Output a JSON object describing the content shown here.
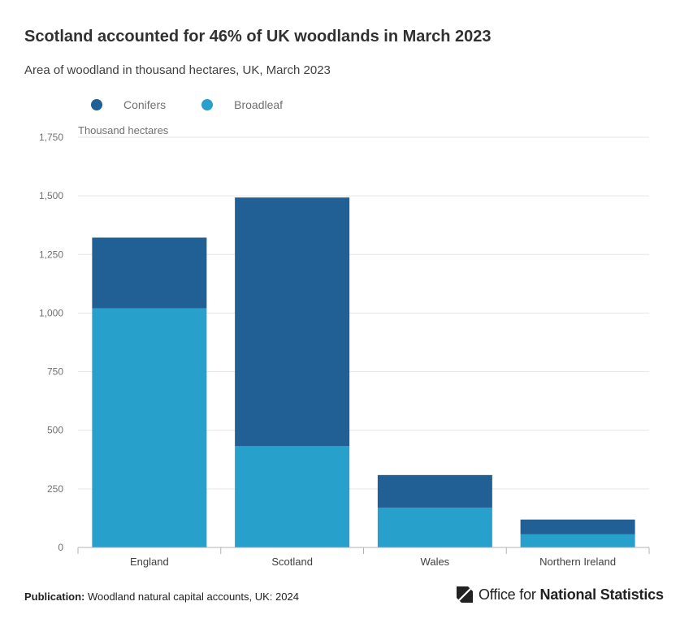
{
  "title": "Scotland accounted for 46% of UK woodlands in March 2023",
  "subtitle": "Area of woodland in thousand hectares, UK, March 2023",
  "unit_label": "Thousand hectares",
  "publication": {
    "label": "Publication:",
    "text": "Woodland natural capital accounts, UK: 2024"
  },
  "logo": {
    "icon": "ons-logo-icon",
    "text_light": "Office for",
    "text_bold": "National Statistics"
  },
  "chart_data": {
    "type": "bar",
    "stacked": true,
    "categories": [
      "England",
      "Scotland",
      "Wales",
      "Northern Ireland"
    ],
    "series": [
      {
        "name": "Broadleaf",
        "color": "#27a0cc",
        "values": [
          1020,
          432,
          170,
          56
        ]
      },
      {
        "name": "Conifers",
        "color": "#206095",
        "values": [
          302,
          1061,
          139,
          63
        ]
      }
    ],
    "legend_order": [
      "Conifers",
      "Broadleaf"
    ],
    "ylim": [
      0,
      1750
    ],
    "yticks": [
      "0",
      "250",
      "500",
      "750",
      "1,000",
      "1,250",
      "1,500",
      "1,750"
    ],
    "ytick_values": [
      0,
      250,
      500,
      750,
      1000,
      1250,
      1500,
      1750
    ],
    "grid": true,
    "legend_position": "top-left"
  }
}
